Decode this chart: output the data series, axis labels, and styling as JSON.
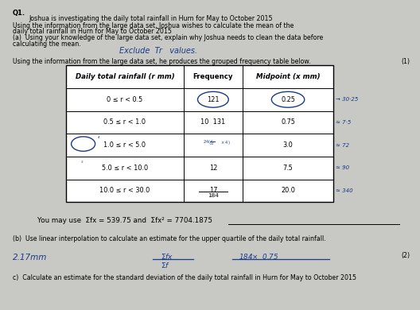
{
  "bg_color": "#c8c8c4",
  "paper_color": "#eeeee8",
  "title": "Q1.",
  "line1": "Joshua is investigating the daily total rainfall in Hurn for May to October 2015",
  "line2": "Using the information from the large data set, Joshua wishes to calculate the mean of the",
  "line3": "daily total rainfall in Hurn for May to October 2015",
  "line4a": "(a)  Using your knowledge of the large data set, explain why Joshua needs to clean the data before",
  "line4b": "calculating the mean.",
  "handwritten1": "Exclude  Tr   values.",
  "line5": "Using the information from the large data set, he produces the grouped frequency table below.",
  "mark1": "(1)",
  "col_headers": [
    "Daily total rainfall (r mm)",
    "Frequency",
    "Midpoint (x mm)"
  ],
  "rows": [
    [
      "0 ≤ r < 0.5",
      "121",
      "0.25"
    ],
    [
      "0.5 ≤ r < 1.0",
      "10  131",
      "0.75"
    ],
    [
      "1.0 ≤ r < 5.0",
      "24",
      "3.0"
    ],
    [
      "5.0 ≤ r < 10.0",
      "12",
      "7.5"
    ],
    [
      "10.0 ≤ r < 30.0",
      "17",
      "20.0"
    ]
  ],
  "row_annotations": [
    "→ 30·25",
    "≈ 7·5",
    "≈ 72",
    "≈ 90",
    "≈ 340"
  ],
  "sum_row": "184",
  "formula_line": "You may use  Σfx = 539.75 and  Σfx² = 7704.1875",
  "part_b": "(b)  Use linear interpolation to calculate an estimate for the upper quartile of the daily total rainfall.",
  "mark2": "(2)",
  "handwritten2": "2.17mm",
  "part_c": "c)  Calculate an estimate for the standard deviation of the daily total rainfall in Hurn for May to October 2015",
  "font_size_body": 6.0,
  "font_size_table": 6.2
}
